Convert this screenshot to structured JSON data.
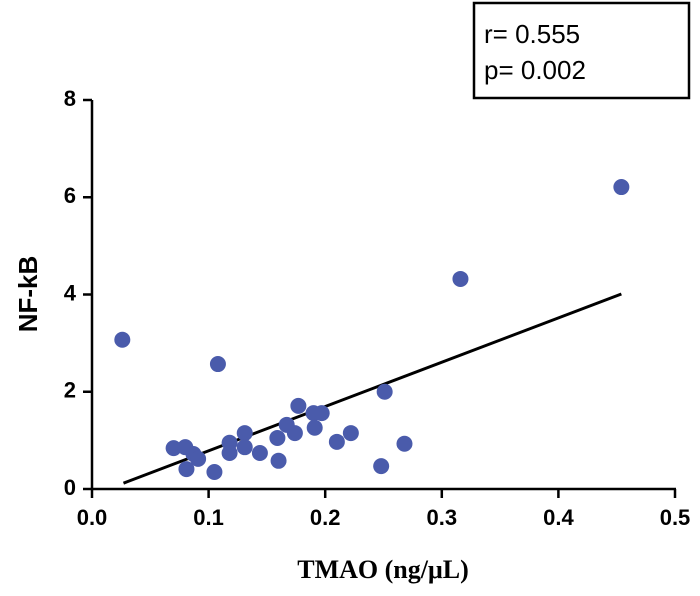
{
  "chart_data": {
    "type": "scatter",
    "x_label": "TMAO (ng/μL)",
    "y_label": "NF-kB",
    "annotations": [
      "r= 0.555",
      "p= 0.002"
    ],
    "color": "#4a5bab",
    "x": [
      0.026,
      0.07,
      0.08,
      0.081,
      0.087,
      0.091,
      0.105,
      0.108,
      0.118,
      0.118,
      0.131,
      0.131,
      0.144,
      0.159,
      0.16,
      0.167,
      0.174,
      0.177,
      0.19,
      0.197,
      0.191,
      0.21,
      0.222,
      0.248,
      0.251,
      0.268,
      0.316,
      0.454
    ],
    "values": [
      3.07,
      0.84,
      0.86,
      0.41,
      0.72,
      0.62,
      0.35,
      2.57,
      0.95,
      0.74,
      1.15,
      0.86,
      0.74,
      1.05,
      0.58,
      1.32,
      1.15,
      1.71,
      1.56,
      1.56,
      1.26,
      0.97,
      1.15,
      0.47,
      2.0,
      0.93,
      4.32,
      6.21
    ],
    "regression": {
      "x": [
        0.027,
        0.454
      ],
      "y": [
        0.12,
        4.01
      ],
      "color": "#000000"
    },
    "xlim": [
      0,
      0.5
    ],
    "xticks": [
      {
        "value": 0,
        "label": "0.0"
      },
      0.1,
      0.2,
      0.3,
      0.4,
      0.5
    ],
    "ylim": [
      0,
      8
    ],
    "yticks": [
      0,
      2,
      4,
      6,
      8
    ]
  }
}
